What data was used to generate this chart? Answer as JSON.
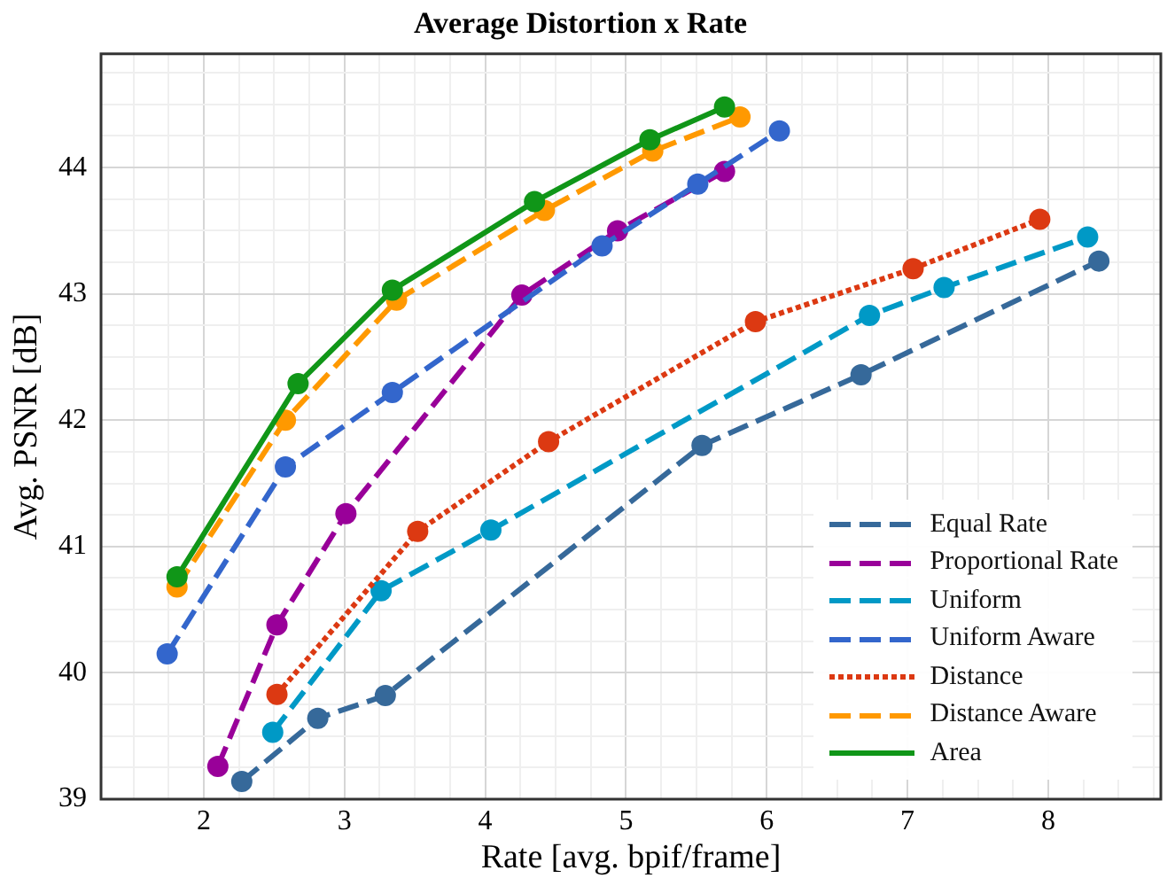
{
  "chart_data": {
    "type": "line",
    "title": "Average Distortion x Rate",
    "xlabel": "Rate [avg. bpif/frame]",
    "ylabel": "Avg. PSNR [dB]",
    "xlim": [
      1.27,
      8.8
    ],
    "ylim": [
      39,
      44.9
    ],
    "xticks": [
      {
        "value": 1.5,
        "label": null
      },
      {
        "value": 1.75,
        "label": null
      },
      2,
      {
        "value": 2.25,
        "label": null
      },
      {
        "value": 2.5,
        "label": null
      },
      {
        "value": 2.75,
        "label": null
      },
      3,
      {
        "value": 3.25,
        "label": null
      },
      {
        "value": 3.5,
        "label": null
      },
      {
        "value": 3.75,
        "label": null
      },
      4,
      {
        "value": 4.25,
        "label": null
      },
      {
        "value": 4.5,
        "label": null
      },
      {
        "value": 4.75,
        "label": null
      },
      5,
      {
        "value": 5.25,
        "label": null
      },
      {
        "value": 5.5,
        "label": null
      },
      {
        "value": 5.75,
        "label": null
      },
      6,
      {
        "value": 6.25,
        "label": null
      },
      {
        "value": 6.5,
        "label": null
      },
      {
        "value": 6.75,
        "label": null
      },
      7,
      {
        "value": 7.25,
        "label": null
      },
      {
        "value": 7.5,
        "label": null
      },
      {
        "value": 7.75,
        "label": null
      },
      8,
      {
        "value": 8.25,
        "label": null
      },
      {
        "value": 8.5,
        "label": null
      },
      {
        "value": 8.75,
        "label": null
      }
    ],
    "yticks": [
      39,
      {
        "value": 39.25,
        "label": null
      },
      {
        "value": 39.5,
        "label": null
      },
      {
        "value": 39.75,
        "label": null
      },
      40,
      {
        "value": 40.25,
        "label": null
      },
      {
        "value": 40.5,
        "label": null
      },
      {
        "value": 40.75,
        "label": null
      },
      41,
      {
        "value": 41.25,
        "label": null
      },
      {
        "value": 41.5,
        "label": null
      },
      {
        "value": 41.75,
        "label": null
      },
      42,
      {
        "value": 42.25,
        "label": null
      },
      {
        "value": 42.5,
        "label": null
      },
      {
        "value": 42.75,
        "label": null
      },
      43,
      {
        "value": 43.25,
        "label": null
      },
      {
        "value": 43.5,
        "label": null
      },
      {
        "value": 43.75,
        "label": null
      },
      44,
      {
        "value": 44.25,
        "label": null
      },
      {
        "value": 44.5,
        "label": null
      },
      {
        "value": 44.75,
        "label": null
      }
    ],
    "grid": true,
    "legend": "bottom right",
    "marker": "circle",
    "series": [
      {
        "name": "Equal Rate",
        "color": "#36699a",
        "line_style": "dashed",
        "x": [
          2.27,
          2.81,
          3.29,
          5.54,
          6.67,
          8.36
        ],
        "values": [
          39.14,
          39.64,
          39.82,
          41.8,
          42.36,
          43.26
        ]
      },
      {
        "name": "Proportional Rate",
        "color": "#990099",
        "line_style": "dashed",
        "x": [
          2.1,
          2.52,
          3.01,
          4.26,
          4.94,
          5.7
        ],
        "values": [
          39.26,
          40.38,
          41.26,
          42.99,
          43.5,
          43.97
        ]
      },
      {
        "name": "Uniform",
        "color": "#0099c6",
        "line_style": "dashed",
        "x": [
          2.49,
          3.26,
          4.04,
          6.73,
          7.26,
          8.28
        ],
        "values": [
          39.53,
          40.65,
          41.13,
          42.83,
          43.05,
          43.45
        ]
      },
      {
        "name": "Uniform Aware",
        "color": "#3366cc",
        "line_style": "dashed",
        "x": [
          1.74,
          2.58,
          3.34,
          4.83,
          5.51,
          6.09
        ],
        "values": [
          40.15,
          41.63,
          42.22,
          43.38,
          43.87,
          44.29
        ]
      },
      {
        "name": "Distance",
        "color": "#dc3912",
        "line_style": "dotted",
        "x": [
          2.52,
          3.52,
          4.45,
          5.92,
          7.04,
          7.94
        ],
        "values": [
          39.83,
          41.12,
          41.83,
          42.78,
          43.2,
          43.59
        ]
      },
      {
        "name": "Distance Aware",
        "color": "#ff9900",
        "line_style": "dashed",
        "x": [
          1.81,
          2.58,
          3.37,
          4.42,
          5.19,
          5.81
        ],
        "values": [
          40.68,
          42.0,
          42.95,
          43.66,
          44.13,
          44.4
        ]
      },
      {
        "name": "Area",
        "color": "#109618",
        "line_style": "solid",
        "x": [
          1.81,
          2.67,
          3.34,
          4.35,
          5.17,
          5.7
        ],
        "values": [
          40.76,
          42.29,
          43.03,
          43.73,
          44.22,
          44.48
        ]
      }
    ]
  }
}
